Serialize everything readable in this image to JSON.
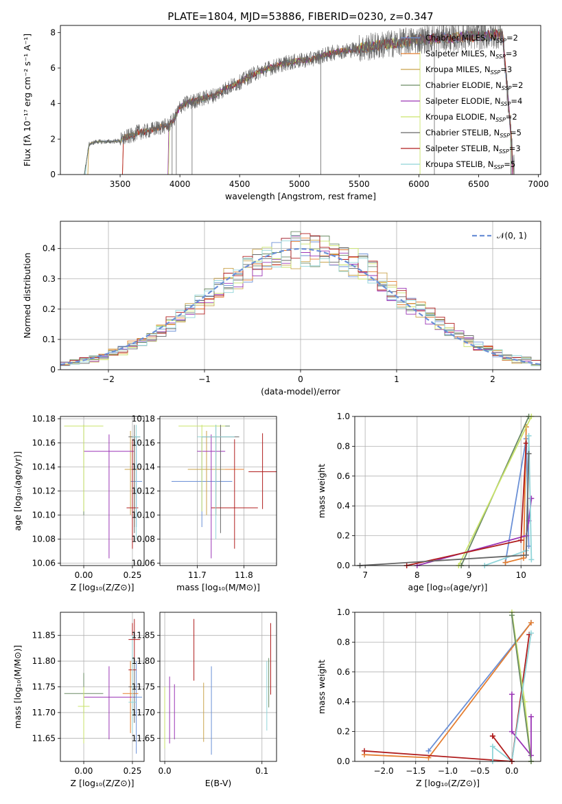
{
  "figure": {
    "title": "PLATE=1804, MJD=53886, FIBERID=0230, z=0.347"
  },
  "models": [
    {
      "name": "Chabrier MILES",
      "nssp": "2",
      "color": "#6a8fd6"
    },
    {
      "name": "Salpeter MILES",
      "nssp": "3",
      "color": "#e47d2f"
    },
    {
      "name": "Kroupa MILES",
      "nssp": "3",
      "color": "#c9a24a"
    },
    {
      "name": "Chabrier ELODIE",
      "nssp": "2",
      "color": "#6a8a64"
    },
    {
      "name": "Salpeter ELODIE",
      "nssp": "4",
      "color": "#9a34b5"
    },
    {
      "name": "Kroupa ELODIE",
      "nssp": "2",
      "color": "#c9e36a"
    },
    {
      "name": "Chabrier STELIB",
      "nssp": "5",
      "color": "#666666"
    },
    {
      "name": "Salpeter STELIB",
      "nssp": "3",
      "color": "#b01c1c"
    },
    {
      "name": "Kroupa STELIB",
      "nssp": "5",
      "color": "#8fd4d8"
    }
  ],
  "chart_data": [
    {
      "id": "spectrum",
      "type": "line",
      "xlabel": "wavelength [Angstrom, rest frame]",
      "ylabel": "Flux [fλ 10⁻¹⁷ erg cm⁻² s⁻¹ A⁻¹]",
      "xlim": [
        3000,
        7020
      ],
      "ylim": [
        0,
        8.4
      ],
      "xticks": [
        3500,
        4000,
        4500,
        5000,
        5500,
        6000,
        6500,
        7000
      ],
      "yticks": [
        0,
        2,
        4,
        6,
        8
      ],
      "data": {
        "x": [
          3200,
          3240,
          3300,
          3400,
          3500,
          3550,
          3600,
          3650,
          3700,
          3750,
          3800,
          3850,
          3900,
          3950,
          4000,
          4050,
          4100,
          4150,
          4200,
          4250,
          4300,
          4400,
          4500,
          4600,
          4700,
          4800,
          4900,
          5000,
          5100,
          5200,
          5300,
          5400,
          5500,
          5600,
          5700,
          5800,
          5900,
          6000,
          6100,
          6200,
          6300,
          6400,
          6500,
          6600,
          6700,
          6800
        ],
        "y": [
          0,
          1.7,
          1.85,
          1.85,
          1.9,
          2.1,
          2.2,
          2.4,
          2.4,
          2.5,
          2.6,
          2.7,
          2.75,
          3.1,
          3.8,
          4.0,
          4.1,
          4.2,
          4.3,
          4.4,
          4.5,
          4.9,
          5.2,
          5.6,
          5.9,
          6.1,
          6.3,
          6.4,
          6.5,
          6.7,
          6.9,
          7.0,
          7.1,
          7.2,
          7.3,
          7.4,
          7.5,
          7.6,
          7.65,
          7.7,
          7.7,
          7.8,
          7.8,
          7.85,
          7.9,
          0
        ]
      }
    },
    {
      "id": "residuals",
      "type": "line",
      "xlabel": "(data-model)/error",
      "ylabel": "Normed distribution",
      "xlim": [
        -2.5,
        2.5
      ],
      "ylim": [
        0,
        0.49
      ],
      "xticks": [
        -2,
        -1,
        0,
        1,
        2
      ],
      "yticks": [
        0.0,
        0.1,
        0.2,
        0.3,
        0.4
      ],
      "grid": true,
      "legend_label": "𝒩(0, 1)",
      "legend_position": "top-right",
      "reference": {
        "mean": 0,
        "sigma": 1,
        "color": "#6a8fd6"
      }
    },
    {
      "id": "age_vs_Z",
      "type": "scatter",
      "xlabel": "Z [log₁₀(Z/Z⊙)]",
      "ylabel": "age  [log₁₀(age/yr)]",
      "xlim": [
        -0.12,
        0.31
      ],
      "ylim": [
        10.058,
        10.182
      ],
      "xticks": [
        0.0,
        0.25
      ],
      "xticklabels": [
        "0.00",
        "0.25"
      ],
      "yticks": [
        10.06,
        10.08,
        10.1,
        10.12,
        10.14,
        10.16,
        10.18
      ],
      "yticklabels": [
        "10.06",
        "10.08",
        "10.10",
        "10.12",
        "10.14",
        "10.16",
        "10.18"
      ],
      "grid": true,
      "points": [
        {
          "model": 0,
          "x": 0.27,
          "y": 10.128,
          "xerr": 0.03,
          "ylo": 10.09,
          "yhi": 10.165
        },
        {
          "model": 1,
          "x": 0.26,
          "y": 10.138,
          "xerr": 0.035,
          "ylo": 10.09,
          "yhi": 10.166
        },
        {
          "model": 2,
          "x": 0.24,
          "y": 10.138,
          "xerr": 0.03,
          "ylo": 10.1,
          "yhi": 10.17
        },
        {
          "model": 3,
          "x": 0.0,
          "y": 10.174,
          "xerr": 0.1,
          "ylo": 10.1,
          "yhi": 10.175
        },
        {
          "model": 4,
          "x": 0.13,
          "y": 10.153,
          "xerr": 0.13,
          "ylo": 10.064,
          "yhi": 10.167
        },
        {
          "model": 5,
          "x": 0.0,
          "y": 10.174,
          "xerr": 0.1,
          "ylo": 10.103,
          "yhi": 10.175
        },
        {
          "model": 6,
          "x": 0.26,
          "y": 10.165,
          "xerr": 0.03,
          "ylo": 10.085,
          "yhi": 10.175
        },
        {
          "model": 7,
          "x": 0.25,
          "y": 10.106,
          "xerr": 0.03,
          "ylo": 10.072,
          "yhi": 10.163
        },
        {
          "model": 8,
          "x": 0.27,
          "y": 10.165,
          "xerr": 0.02,
          "ylo": 10.08,
          "yhi": 10.175
        }
      ]
    },
    {
      "id": "age_vs_mass",
      "type": "scatter",
      "xlabel": "mass [log₁₀(M/M⊙)]",
      "ylabel": "",
      "xlim": [
        11.62,
        11.87
      ],
      "ylim": [
        10.058,
        10.182
      ],
      "xticks": [
        11.7,
        11.8
      ],
      "xticklabels": [
        "11.7",
        "11.8"
      ],
      "yticks": [
        10.06,
        10.08,
        10.1,
        10.12,
        10.14,
        10.16,
        10.18
      ],
      "yticklabels": [
        "10.06",
        "10.08",
        "10.10",
        "10.12",
        "10.14",
        "10.16",
        "10.18"
      ],
      "grid": true,
      "points": [
        {
          "model": 0,
          "x": 11.71,
          "y": 10.128,
          "xerr": 0.065,
          "ylo": 10.09,
          "yhi": 10.165
        },
        {
          "model": 1,
          "x": 11.74,
          "y": 10.138,
          "xerr": 0.06,
          "ylo": 10.1,
          "yhi": 10.166
        },
        {
          "model": 2,
          "x": 11.72,
          "y": 10.138,
          "xerr": 0.04,
          "ylo": 10.1,
          "yhi": 10.17
        },
        {
          "model": 3,
          "x": 11.74,
          "y": 10.174,
          "xerr": 0.03,
          "ylo": 10.1,
          "yhi": 10.175
        },
        {
          "model": 4,
          "x": 11.73,
          "y": 10.153,
          "xerr": 0.03,
          "ylo": 10.064,
          "yhi": 10.167
        },
        {
          "model": 5,
          "x": 11.71,
          "y": 10.174,
          "xerr": 0.05,
          "ylo": 10.103,
          "yhi": 10.175
        },
        {
          "model": 6,
          "x": 11.75,
          "y": 10.165,
          "xerr": 0.04,
          "ylo": 10.085,
          "yhi": 10.175
        },
        {
          "model": 7,
          "x": 11.78,
          "y": 10.106,
          "xerr": 0.05,
          "ylo": 10.072,
          "yhi": 10.163
        },
        {
          "model": 8,
          "x": 11.74,
          "y": 10.165,
          "xerr": 0.04,
          "ylo": 10.08,
          "yhi": 10.175
        },
        {
          "model": 7,
          "x": 11.84,
          "y": 10.136,
          "xerr": 0.03,
          "ylo": 10.105,
          "yhi": 10.168
        }
      ]
    },
    {
      "id": "weight_vs_age",
      "type": "line",
      "xlabel": "age  [log₁₀(age/yr)]",
      "ylabel": "mass weight",
      "xlim": [
        6.8,
        10.38
      ],
      "ylim": [
        0,
        1.0
      ],
      "xticks": [
        7,
        8,
        9,
        10
      ],
      "yticks": [
        0.0,
        0.2,
        0.4,
        0.6,
        0.8,
        1.0
      ],
      "yticklabels": [
        "0.0",
        "0.2",
        "0.4",
        "0.6",
        "0.8",
        "1.0"
      ],
      "grid": true,
      "series": [
        {
          "model": 0,
          "x": [
            9.7,
            10.1,
            10.15
          ],
          "y": [
            0.02,
            0.85,
            0.13
          ]
        },
        {
          "model": 1,
          "x": [
            9.7,
            10.05,
            10.1
          ],
          "y": [
            0.02,
            0.05,
            0.93
          ]
        },
        {
          "model": 3,
          "x": [
            8.85,
            10.15
          ],
          "y": [
            0.0,
            1.0
          ]
        },
        {
          "model": 4,
          "x": [
            8.0,
            10.1,
            10.15,
            10.2
          ],
          "y": [
            0.0,
            0.2,
            0.3,
            0.45
          ]
        },
        {
          "model": 5,
          "x": [
            8.8,
            10.2
          ],
          "y": [
            0.0,
            1.0
          ]
        },
        {
          "model": 7,
          "x": [
            7.8,
            10.0,
            10.1
          ],
          "y": [
            0.0,
            0.17,
            0.82
          ]
        },
        {
          "model": 8,
          "x": [
            9.3,
            10.1,
            10.15,
            10.2
          ],
          "y": [
            0.0,
            0.1,
            0.87,
            0.04
          ]
        },
        {
          "model": 6,
          "x": [
            6.9,
            10.1,
            10.15
          ],
          "y": [
            0.0,
            0.07,
            0.75
          ]
        }
      ]
    },
    {
      "id": "mass_vs_Z",
      "type": "scatter",
      "xlabel": "Z [log₁₀(Z/Z⊙)]",
      "ylabel": "mass [log₁₀(M/M⊙)]",
      "xlim": [
        -0.12,
        0.31
      ],
      "ylim": [
        11.605,
        11.895
      ],
      "xticks": [
        0.0,
        0.25
      ],
      "xticklabels": [
        "0.00",
        "0.25"
      ],
      "yticks": [
        11.65,
        11.7,
        11.75,
        11.8,
        11.85
      ],
      "yticklabels": [
        "11.65",
        "11.70",
        "11.75",
        "11.80",
        "11.85"
      ],
      "grid": true,
      "points": [
        {
          "model": 0,
          "x": 0.27,
          "y": 11.73,
          "xerr": 0.03,
          "ylo": 11.62,
          "yhi": 11.8
        },
        {
          "model": 1,
          "x": 0.24,
          "y": 11.737,
          "xerr": 0.04,
          "ylo": 11.66,
          "yhi": 11.8
        },
        {
          "model": 3,
          "x": 0.0,
          "y": 11.737,
          "xerr": 0.1,
          "ylo": 11.7,
          "yhi": 11.777
        },
        {
          "model": 4,
          "x": 0.13,
          "y": 11.73,
          "xerr": 0.13,
          "ylo": 11.648,
          "yhi": 11.79
        },
        {
          "model": 5,
          "x": 0.0,
          "y": 11.712,
          "xerr": 0.03,
          "ylo": 11.64,
          "yhi": 11.75
        },
        {
          "model": 6,
          "x": 0.26,
          "y": 11.75,
          "xerr": 0.03,
          "ylo": 11.68,
          "yhi": 11.8
        },
        {
          "model": 7,
          "x": 0.25,
          "y": 11.783,
          "xerr": 0.02,
          "ylo": 11.74,
          "yhi": 11.874
        },
        {
          "model": 8,
          "x": 0.25,
          "y": 11.72,
          "xerr": 0.02,
          "ylo": 11.66,
          "yhi": 11.85
        },
        {
          "model": 7,
          "x": 0.26,
          "y": 11.842,
          "xerr": 0.03,
          "ylo": 11.8,
          "yhi": 11.882
        }
      ]
    },
    {
      "id": "mass_vs_ebv",
      "type": "scatter",
      "xlabel": "E(B-V)",
      "ylabel": "",
      "xlim": [
        -0.005,
        0.115
      ],
      "ylim": [
        11.605,
        11.895
      ],
      "xticks": [
        0.0,
        0.1
      ],
      "xticklabels": [
        "0.0",
        "0.1"
      ],
      "yticks": [
        11.65,
        11.7,
        11.75,
        11.8,
        11.85
      ],
      "yticklabels": [
        "11.65",
        "11.70",
        "11.75",
        "11.80",
        "11.85"
      ],
      "grid": true,
      "points": [
        {
          "model": 5,
          "x": 0.0,
          "y": 11.7,
          "ylo": 11.63,
          "yhi": 11.75
        },
        {
          "model": 4,
          "x": 0.005,
          "y": 11.71,
          "ylo": 11.64,
          "yhi": 11.77
        },
        {
          "model": 4,
          "x": 0.01,
          "y": 11.7,
          "ylo": 11.648,
          "yhi": 11.755
        },
        {
          "model": 7,
          "x": 0.03,
          "y": 11.82,
          "ylo": 11.762,
          "yhi": 11.882
        },
        {
          "model": 2,
          "x": 0.04,
          "y": 11.7,
          "ylo": 11.643,
          "yhi": 11.758
        },
        {
          "model": 0,
          "x": 0.048,
          "y": 11.7,
          "ylo": 11.618,
          "yhi": 11.79
        },
        {
          "model": 8,
          "x": 0.105,
          "y": 11.73,
          "ylo": 11.665,
          "yhi": 11.8
        },
        {
          "model": 3,
          "x": 0.107,
          "y": 11.76,
          "ylo": 11.71,
          "yhi": 11.806
        },
        {
          "model": 7,
          "x": 0.109,
          "y": 11.8,
          "ylo": 11.735,
          "yhi": 11.874
        }
      ]
    },
    {
      "id": "weight_vs_Z",
      "type": "line",
      "xlabel": "Z [log₁₀(Z/Z⊙)]",
      "ylabel": "mass weight",
      "xlim": [
        -2.45,
        0.45
      ],
      "ylim": [
        0,
        1.0
      ],
      "xticks": [
        -2.0,
        -1.5,
        -1.0,
        -0.5,
        0.0
      ],
      "xticklabels": [
        "−2.0",
        "−1.5",
        "−1.0",
        "−0.5",
        "0.0"
      ],
      "yticks": [
        0.0,
        0.2,
        0.4,
        0.6,
        0.8,
        1.0
      ],
      "yticklabels": [
        "0.0",
        "0.2",
        "0.4",
        "0.6",
        "0.8",
        "1.0"
      ],
      "grid": true,
      "series": [
        {
          "model": 0,
          "x": [
            -1.3,
            0.3
          ],
          "y": [
            0.07,
            0.93
          ]
        },
        {
          "model": 1,
          "x": [
            -2.3,
            -1.3,
            0.3
          ],
          "y": [
            0.045,
            0.025,
            0.93
          ]
        },
        {
          "model": 7,
          "x": [
            -2.3,
            0.0,
            0.27
          ],
          "y": [
            0.07,
            0.0,
            0.85
          ]
        },
        {
          "model": 5,
          "x": [
            0.0,
            0.2,
            0.3
          ],
          "y": [
            1.0,
            0.4,
            0.0
          ]
        },
        {
          "model": 4,
          "x": [
            0.0,
            0.0,
            0.3,
            0.3
          ],
          "y": [
            0.45,
            0.2,
            0.04,
            0.3
          ]
        },
        {
          "model": 3,
          "x": [
            -0.0,
            0.3
          ],
          "y": [
            0.98,
            0.0
          ]
        },
        {
          "model": 8,
          "x": [
            -0.3,
            -0.3,
            0.0,
            0.3
          ],
          "y": [
            0.0,
            0.1,
            0.0,
            0.86
          ]
        },
        {
          "model": 7,
          "x": [
            -0.3,
            -0.3,
            0.0
          ],
          "y": [
            0.17,
            0.17,
            0.0
          ]
        }
      ]
    }
  ]
}
